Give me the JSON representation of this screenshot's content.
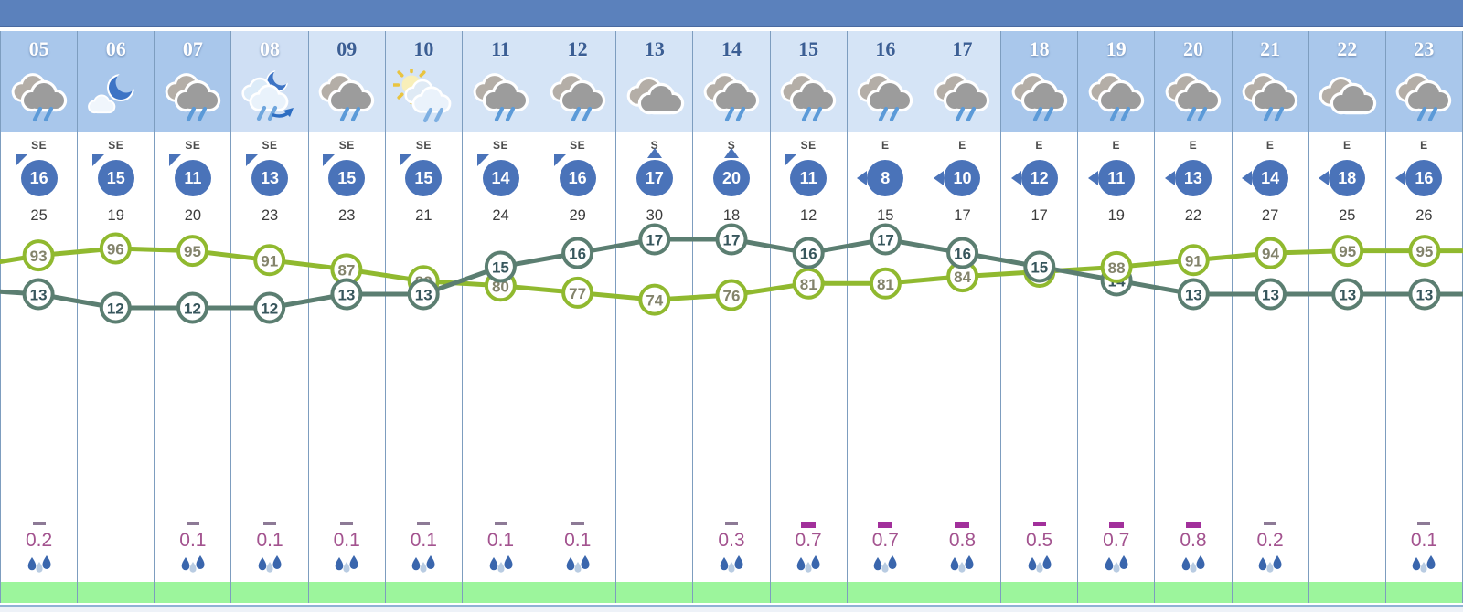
{
  "colors": {
    "top_bar": "#5b81bc",
    "night_bg": "#a9c7eb",
    "day_bg": "#d5e4f6",
    "column_border": "#7d9dbf",
    "wind_circle": "#4a73b9",
    "humidity_line": "#90b92f",
    "temperature_line": "#5b7e71",
    "humidity_label": "#83836b",
    "temperature_label": "#37565c",
    "precip_text": "#a3538f",
    "bar_thin": "#8d7a96",
    "bar_thick": "#a2309b",
    "green_strip": "#9cf59c",
    "rain_drop_dark": "#3a66ad",
    "rain_drop_light": "#b9cce2"
  },
  "columns": [
    {
      "hour": "05",
      "phase": "night",
      "icon": "rain",
      "wind_dir": "SE",
      "arrow": "nw",
      "wind_speed": "16",
      "gust": "25",
      "precip": "0.2",
      "bar": "thin"
    },
    {
      "hour": "06",
      "phase": "night",
      "icon": "moon",
      "wind_dir": "SE",
      "arrow": "nw",
      "wind_speed": "15",
      "gust": "19",
      "precip": null,
      "bar": null
    },
    {
      "hour": "07",
      "phase": "night",
      "icon": "rain",
      "wind_dir": "SE",
      "arrow": "nw",
      "wind_speed": "11",
      "gust": "20",
      "precip": "0.1",
      "bar": "thin"
    },
    {
      "hour": "08",
      "phase": "dawn",
      "icon": "moonrain",
      "wind_dir": "SE",
      "arrow": "nw",
      "wind_speed": "13",
      "gust": "23",
      "precip": "0.1",
      "bar": "thin"
    },
    {
      "hour": "09",
      "phase": "day",
      "icon": "rain",
      "wind_dir": "SE",
      "arrow": "nw",
      "wind_speed": "15",
      "gust": "23",
      "precip": "0.1",
      "bar": "thin"
    },
    {
      "hour": "10",
      "phase": "day",
      "icon": "sunrain",
      "wind_dir": "SE",
      "arrow": "nw",
      "wind_speed": "15",
      "gust": "21",
      "precip": "0.1",
      "bar": "thin"
    },
    {
      "hour": "11",
      "phase": "day",
      "icon": "rain",
      "wind_dir": "SE",
      "arrow": "nw",
      "wind_speed": "14",
      "gust": "24",
      "precip": "0.1",
      "bar": "thin"
    },
    {
      "hour": "12",
      "phase": "day",
      "icon": "rain",
      "wind_dir": "SE",
      "arrow": "nw",
      "wind_speed": "16",
      "gust": "29",
      "precip": "0.1",
      "bar": "thin"
    },
    {
      "hour": "13",
      "phase": "day",
      "icon": "cloudy",
      "wind_dir": "S",
      "arrow": "n",
      "wind_speed": "17",
      "gust": "30",
      "precip": null,
      "bar": null
    },
    {
      "hour": "14",
      "phase": "day",
      "icon": "rain",
      "wind_dir": "S",
      "arrow": "n",
      "wind_speed": "20",
      "gust": "18",
      "precip": "0.3",
      "bar": "thin"
    },
    {
      "hour": "15",
      "phase": "day",
      "icon": "rain",
      "wind_dir": "SE",
      "arrow": "nw",
      "wind_speed": "11",
      "gust": "12",
      "precip": "0.7",
      "bar": "thick"
    },
    {
      "hour": "16",
      "phase": "day",
      "icon": "rain",
      "wind_dir": "E",
      "arrow": "w",
      "wind_speed": "8",
      "gust": "15",
      "precip": "0.7",
      "bar": "thick"
    },
    {
      "hour": "17",
      "phase": "day",
      "icon": "rain",
      "wind_dir": "E",
      "arrow": "w",
      "wind_speed": "10",
      "gust": "17",
      "precip": "0.8",
      "bar": "thick"
    },
    {
      "hour": "18",
      "phase": "night",
      "icon": "rain",
      "wind_dir": "E",
      "arrow": "w",
      "wind_speed": "12",
      "gust": "17",
      "precip": "0.5",
      "bar": "medium"
    },
    {
      "hour": "19",
      "phase": "night",
      "icon": "rain",
      "wind_dir": "E",
      "arrow": "w",
      "wind_speed": "11",
      "gust": "19",
      "precip": "0.7",
      "bar": "thick"
    },
    {
      "hour": "20",
      "phase": "night",
      "icon": "rain",
      "wind_dir": "E",
      "arrow": "w",
      "wind_speed": "13",
      "gust": "22",
      "precip": "0.8",
      "bar": "thick"
    },
    {
      "hour": "21",
      "phase": "night",
      "icon": "rain",
      "wind_dir": "E",
      "arrow": "w",
      "wind_speed": "14",
      "gust": "27",
      "precip": "0.2",
      "bar": "thin"
    },
    {
      "hour": "22",
      "phase": "night",
      "icon": "cloudy",
      "wind_dir": "E",
      "arrow": "w",
      "wind_speed": "18",
      "gust": "25",
      "precip": null,
      "bar": null
    },
    {
      "hour": "23",
      "phase": "night",
      "icon": "rain",
      "wind_dir": "E",
      "arrow": "w",
      "wind_speed": "16",
      "gust": "26",
      "precip": "0.1",
      "bar": "thin"
    }
  ],
  "chart_data": {
    "type": "line",
    "x": [
      "05",
      "06",
      "07",
      "08",
      "09",
      "10",
      "11",
      "12",
      "13",
      "14",
      "15",
      "16",
      "17",
      "18",
      "19",
      "20",
      "21",
      "22",
      "23"
    ],
    "series": [
      {
        "name": "humidity_percent",
        "color": "#90b92f",
        "values": [
          93,
          96,
          95,
          91,
          87,
          82,
          80,
          77,
          74,
          76,
          81,
          81,
          84,
          86,
          88,
          91,
          94,
          95,
          95
        ]
      },
      {
        "name": "temperature_c",
        "color": "#5b7e71",
        "values": [
          13,
          12,
          12,
          12,
          13,
          13,
          15,
          16,
          17,
          17,
          16,
          17,
          16,
          15,
          14,
          13,
          13,
          13,
          13
        ]
      }
    ],
    "title": "",
    "xlabel": "",
    "ylabel": "",
    "grid": "vertical-column-borders",
    "legend": "none",
    "marker": "white-filled-circle-with-value"
  }
}
